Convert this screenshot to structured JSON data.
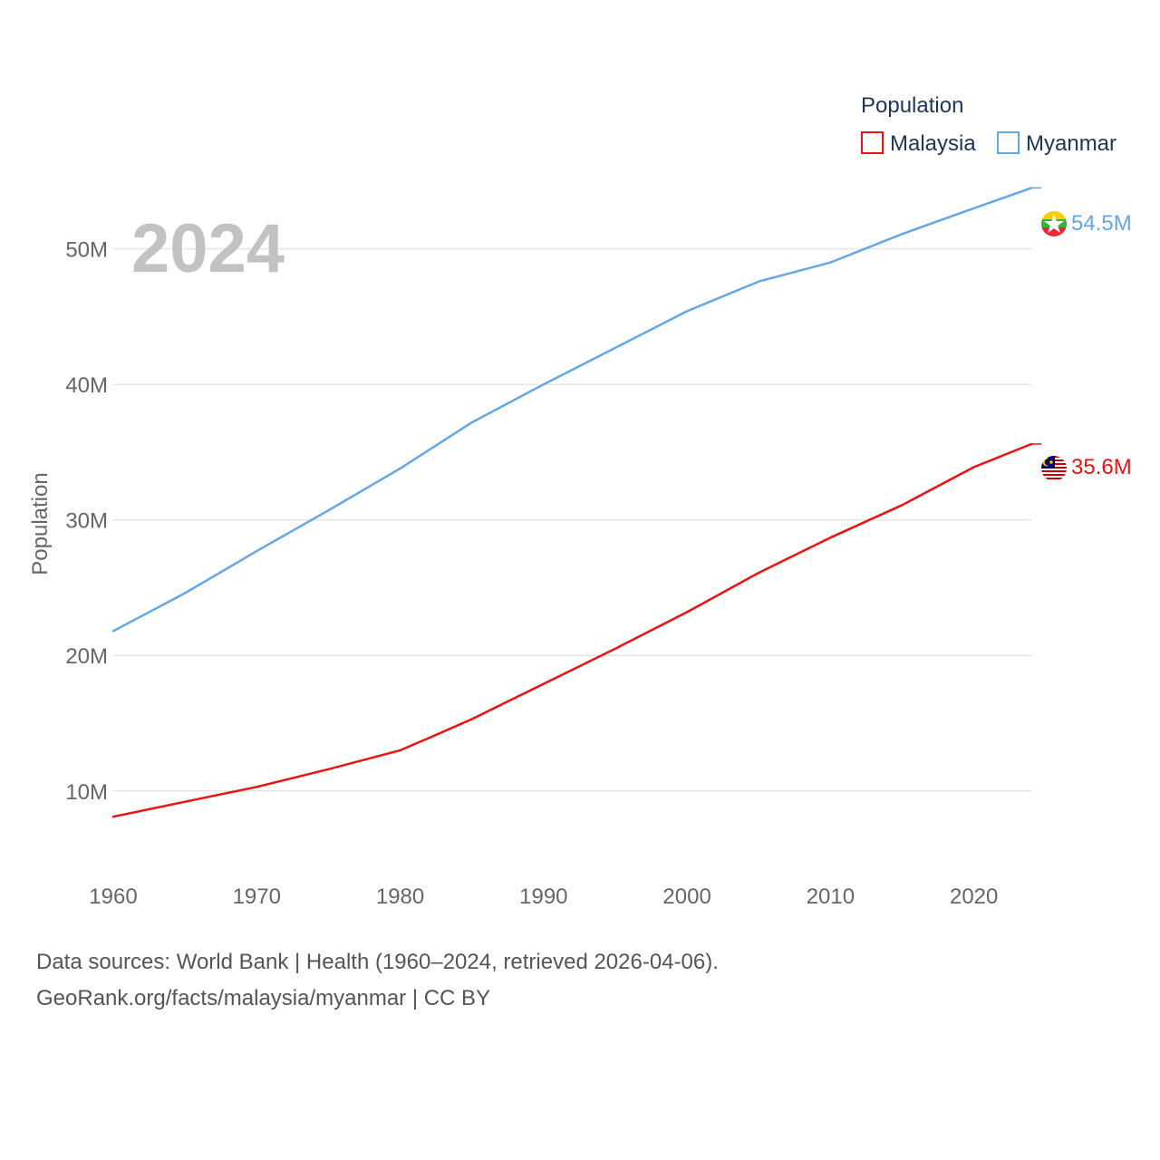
{
  "chart_data": {
    "type": "line",
    "title": "",
    "year_label": "2024",
    "ylabel": "Population",
    "xlabel": "",
    "xlim": [
      1960,
      2024
    ],
    "ylim": [
      4500000,
      57000000
    ],
    "x_ticks": [
      1960,
      1970,
      1980,
      1990,
      2000,
      2010,
      2020
    ],
    "x_tick_labels": [
      "1960",
      "1970",
      "1980",
      "1990",
      "2000",
      "2010",
      "2020"
    ],
    "y_ticks": [
      10000000,
      20000000,
      30000000,
      40000000,
      50000000
    ],
    "y_tick_labels": [
      "10M",
      "20M",
      "30M",
      "40M",
      "50M"
    ],
    "legend": {
      "title": "Population",
      "position": "top-right",
      "entries": [
        "Malaysia",
        "Myanmar"
      ]
    },
    "series": [
      {
        "name": "Malaysia",
        "color": "#ee1111",
        "end_label": "35.6M",
        "flag_icon": "malaysia-flag-icon",
        "x": [
          1960,
          1965,
          1970,
          1975,
          1980,
          1982,
          1985,
          1990,
          1995,
          2000,
          2005,
          2010,
          2015,
          2020,
          2024
        ],
        "values": [
          8100000,
          9200000,
          10300000,
          11600000,
          13000000,
          13900000,
          15300000,
          17900000,
          20500000,
          23200000,
          26100000,
          28700000,
          31100000,
          33900000,
          35600000
        ]
      },
      {
        "name": "Myanmar",
        "color": "#63a7e4",
        "end_label": "54.5M",
        "flag_icon": "myanmar-flag-icon",
        "x": [
          1960,
          1965,
          1970,
          1975,
          1980,
          1985,
          1990,
          1995,
          2000,
          2005,
          2010,
          2015,
          2020,
          2024
        ],
        "values": [
          21800000,
          24600000,
          27700000,
          30700000,
          33800000,
          37200000,
          40000000,
          42700000,
          45400000,
          47600000,
          49000000,
          51100000,
          53000000,
          54500000
        ]
      }
    ]
  },
  "footer": {
    "sources": "Data sources: World Bank | Health (1960–2024, retrieved 2026-04-06).",
    "credit": "GeoRank.org/facts/malaysia/myanmar | CC BY"
  }
}
